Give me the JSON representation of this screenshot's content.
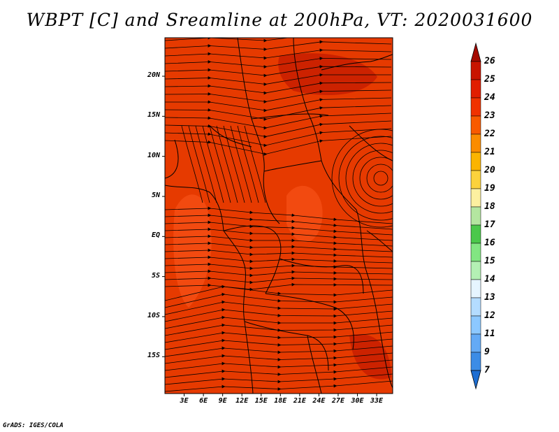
{
  "title": "WBPT [C] and Sreamline at 200hPa, VT: 2020031600",
  "credit": "GrADS: IGES/COLA",
  "lat_labels": [
    "20N",
    "15N",
    "10N",
    "5N",
    "EQ",
    "5S",
    "10S",
    "15S"
  ],
  "lon_labels": [
    "3E",
    "6E",
    "9E",
    "12E",
    "15E",
    "18E",
    "21E",
    "24E",
    "27E",
    "30E",
    "33E"
  ],
  "colorbar": {
    "labels": [
      "26",
      "25",
      "24",
      "23",
      "22",
      "21",
      "20",
      "19",
      "18",
      "17",
      "16",
      "15",
      "14",
      "13",
      "12",
      "11",
      "9",
      "7"
    ],
    "colors": [
      "#a50a00",
      "#c81400",
      "#e11e00",
      "#f03200",
      "#f85a00",
      "#fb8c00",
      "#fbb400",
      "#fcd23c",
      "#fdf0a0",
      "#b4e6a0",
      "#4bc84b",
      "#82e682",
      "#b4f0b4",
      "#e6f5ff",
      "#b4dcff",
      "#8cc8ff",
      "#64aaf5",
      "#3c8ce6",
      "#1e6ed2"
    ]
  },
  "fill_colors": {
    "base": "#e63a00",
    "light": "#f24a10",
    "dark": "#cc2200"
  }
}
